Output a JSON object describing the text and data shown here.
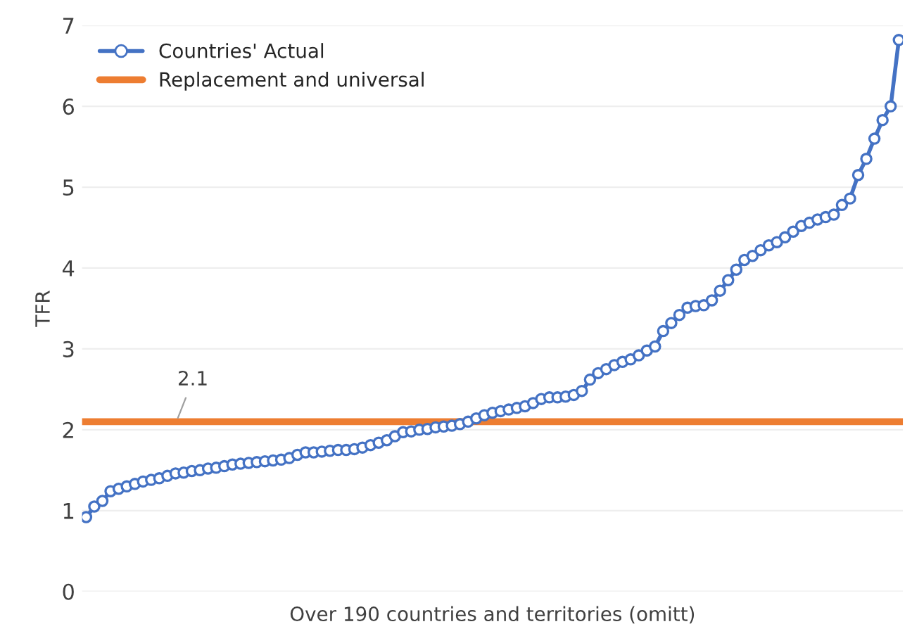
{
  "chart_data": {
    "type": "line",
    "xlabel": "Over 190 countries and territories (omitt)",
    "ylabel": "TFR",
    "categories": [
      null,
      null,
      null,
      null,
      null,
      null,
      null,
      null,
      null,
      null,
      null,
      null,
      null,
      null,
      null,
      null,
      null,
      null,
      null,
      null,
      null,
      null,
      null,
      null,
      null,
      null,
      null,
      null,
      null,
      null,
      null,
      null,
      null,
      null,
      null,
      null,
      null,
      null,
      null,
      null,
      null,
      null,
      null,
      null,
      null,
      null,
      null,
      null,
      null,
      null,
      null,
      null,
      null,
      null,
      null,
      null,
      null,
      null,
      null,
      null,
      null,
      null,
      null,
      null,
      null,
      null,
      null,
      null,
      null,
      null,
      null,
      null,
      null,
      null,
      null,
      null,
      null,
      null,
      null,
      null,
      null,
      null,
      null,
      null,
      null,
      null,
      null,
      null,
      null,
      null,
      null,
      null,
      null,
      null,
      null,
      null,
      null,
      null,
      null,
      null,
      null
    ],
    "series": [
      {
        "name": "Countries' Actual",
        "color": "#4472c4",
        "values": [
          0.92,
          1.05,
          1.12,
          1.24,
          1.27,
          1.3,
          1.33,
          1.36,
          1.38,
          1.4,
          1.43,
          1.46,
          1.47,
          1.49,
          1.5,
          1.52,
          1.53,
          1.55,
          1.57,
          1.58,
          1.59,
          1.6,
          1.61,
          1.62,
          1.63,
          1.65,
          1.69,
          1.72,
          1.72,
          1.73,
          1.74,
          1.75,
          1.75,
          1.76,
          1.78,
          1.81,
          1.84,
          1.87,
          1.92,
          1.97,
          1.98,
          2.0,
          2.01,
          2.03,
          2.04,
          2.05,
          2.07,
          2.1,
          2.14,
          2.18,
          2.21,
          2.23,
          2.25,
          2.27,
          2.29,
          2.33,
          2.38,
          2.4,
          2.4,
          2.41,
          2.43,
          2.48,
          2.62,
          2.7,
          2.75,
          2.8,
          2.84,
          2.87,
          2.92,
          2.98,
          3.03,
          3.22,
          3.32,
          3.42,
          3.51,
          3.53,
          3.54,
          3.6,
          3.72,
          3.85,
          3.98,
          4.1,
          4.15,
          4.22,
          4.28,
          4.32,
          4.38,
          4.45,
          4.52,
          4.56,
          4.6,
          4.63,
          4.66,
          4.78,
          4.86,
          5.15,
          5.35,
          5.6,
          5.83,
          6.0,
          6.82
        ]
      }
    ],
    "ref_lines": [
      {
        "axis": "y",
        "value": 2.1,
        "label": "Replacement and universal",
        "color": "#ed7d31"
      }
    ],
    "annotations": [
      {
        "text": "2.1",
        "y": 2.1
      }
    ],
    "ylim": [
      0,
      7
    ],
    "yticks": [
      0,
      1,
      2,
      3,
      4,
      5,
      6,
      7
    ],
    "grid": "y",
    "legend": "top left",
    "marker": "circle",
    "line_style": "solid"
  }
}
